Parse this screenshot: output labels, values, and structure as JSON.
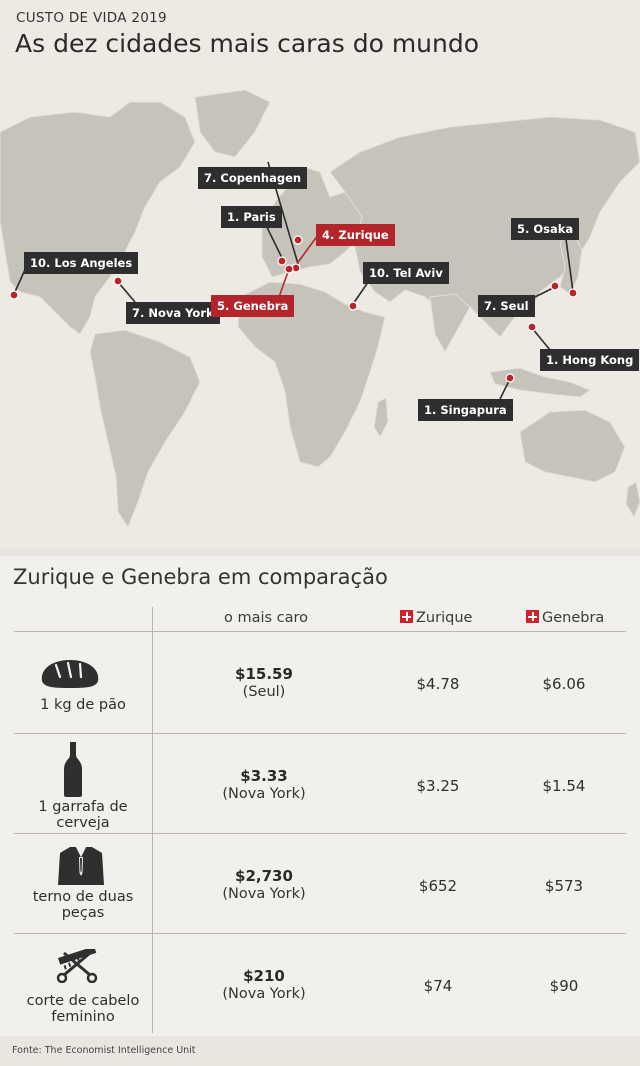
{
  "header": {
    "kicker": "CUSTO DE VIDA 2019",
    "title": "As dez cidades mais caras do mundo"
  },
  "map": {
    "cities": [
      {
        "label": "7. Copenhagen",
        "highlight": false
      },
      {
        "label": "1. Paris",
        "highlight": false
      },
      {
        "label": "4. Zurique",
        "highlight": true
      },
      {
        "label": "10. Los Angeles",
        "highlight": false
      },
      {
        "label": "7. Nova York",
        "highlight": false
      },
      {
        "label": "5. Genebra",
        "highlight": true
      },
      {
        "label": "10. Tel Aviv",
        "highlight": false
      },
      {
        "label": "5. Osaka",
        "highlight": false
      },
      {
        "label": "7. Seul",
        "highlight": false
      },
      {
        "label": "1. Hong Kong",
        "highlight": false
      },
      {
        "label": "1. Singapura",
        "highlight": false
      }
    ],
    "colors": {
      "land": "#c6c3bb",
      "highlight": "#b3252a",
      "label": "#2e2e2e"
    }
  },
  "comparison": {
    "title": "Zurique e Genebra em comparação",
    "headers": {
      "max": "o mais caro",
      "zurich": "Zurique",
      "geneva": "Genebra"
    },
    "rows": [
      {
        "icon": "bread-icon",
        "item": "1 kg de pão",
        "max_value": "$15.59",
        "max_city": "(Seul)",
        "zurich": "$4.78",
        "geneva": "$6.06"
      },
      {
        "icon": "beer-bottle-icon",
        "item": "1 garrafa de cerveja",
        "max_value": "$3.33",
        "max_city": "(Nova York)",
        "zurich": "$3.25",
        "geneva": "$1.54"
      },
      {
        "icon": "suit-icon",
        "item": "terno de duas peças",
        "max_value": "$2,730",
        "max_city": "(Nova York)",
        "zurich": "$652",
        "geneva": "$573"
      },
      {
        "icon": "scissors-comb-icon",
        "item": "corte de cabelo feminino",
        "max_value": "$210",
        "max_city": "(Nova York)",
        "zurich": "$74",
        "geneva": "$90"
      }
    ]
  },
  "footer": {
    "source": "Fonte: The Economist Intelligence Unit"
  }
}
